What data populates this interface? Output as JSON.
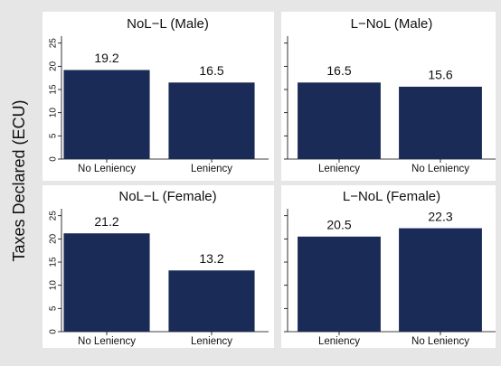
{
  "ylabel": "Taxes Declared (ECU)",
  "chart_data": [
    {
      "type": "bar",
      "title": "NoL−L (Male)",
      "categories": [
        "No Leniency",
        "Leniency"
      ],
      "values": [
        19.2,
        16.5
      ],
      "color": "#1b2b57",
      "ylim": [
        0,
        26.5
      ],
      "yticks": [
        0,
        5,
        10,
        15,
        20,
        25
      ]
    },
    {
      "type": "bar",
      "title": "L−NoL (Male)",
      "categories": [
        "Leniency",
        "No Leniency"
      ],
      "values": [
        16.5,
        15.6
      ],
      "color": "#1b2b57",
      "ylim": [
        0,
        26.5
      ],
      "yticks": [
        0,
        5,
        10,
        15,
        20,
        25
      ]
    },
    {
      "type": "bar",
      "title": "NoL−L (Female)",
      "categories": [
        "No Leniency",
        "Leniency"
      ],
      "values": [
        21.2,
        13.2
      ],
      "color": "#1b2b57",
      "ylim": [
        0,
        26.5
      ],
      "yticks": [
        0,
        5,
        10,
        15,
        20,
        25
      ]
    },
    {
      "type": "bar",
      "title": "L−NoL (Female)",
      "categories": [
        "Leniency",
        "No Leniency"
      ],
      "values": [
        20.5,
        22.3
      ],
      "color": "#1b2b57",
      "ylim": [
        0,
        26.5
      ],
      "yticks": [
        0,
        5,
        10,
        15,
        20,
        25
      ]
    }
  ]
}
